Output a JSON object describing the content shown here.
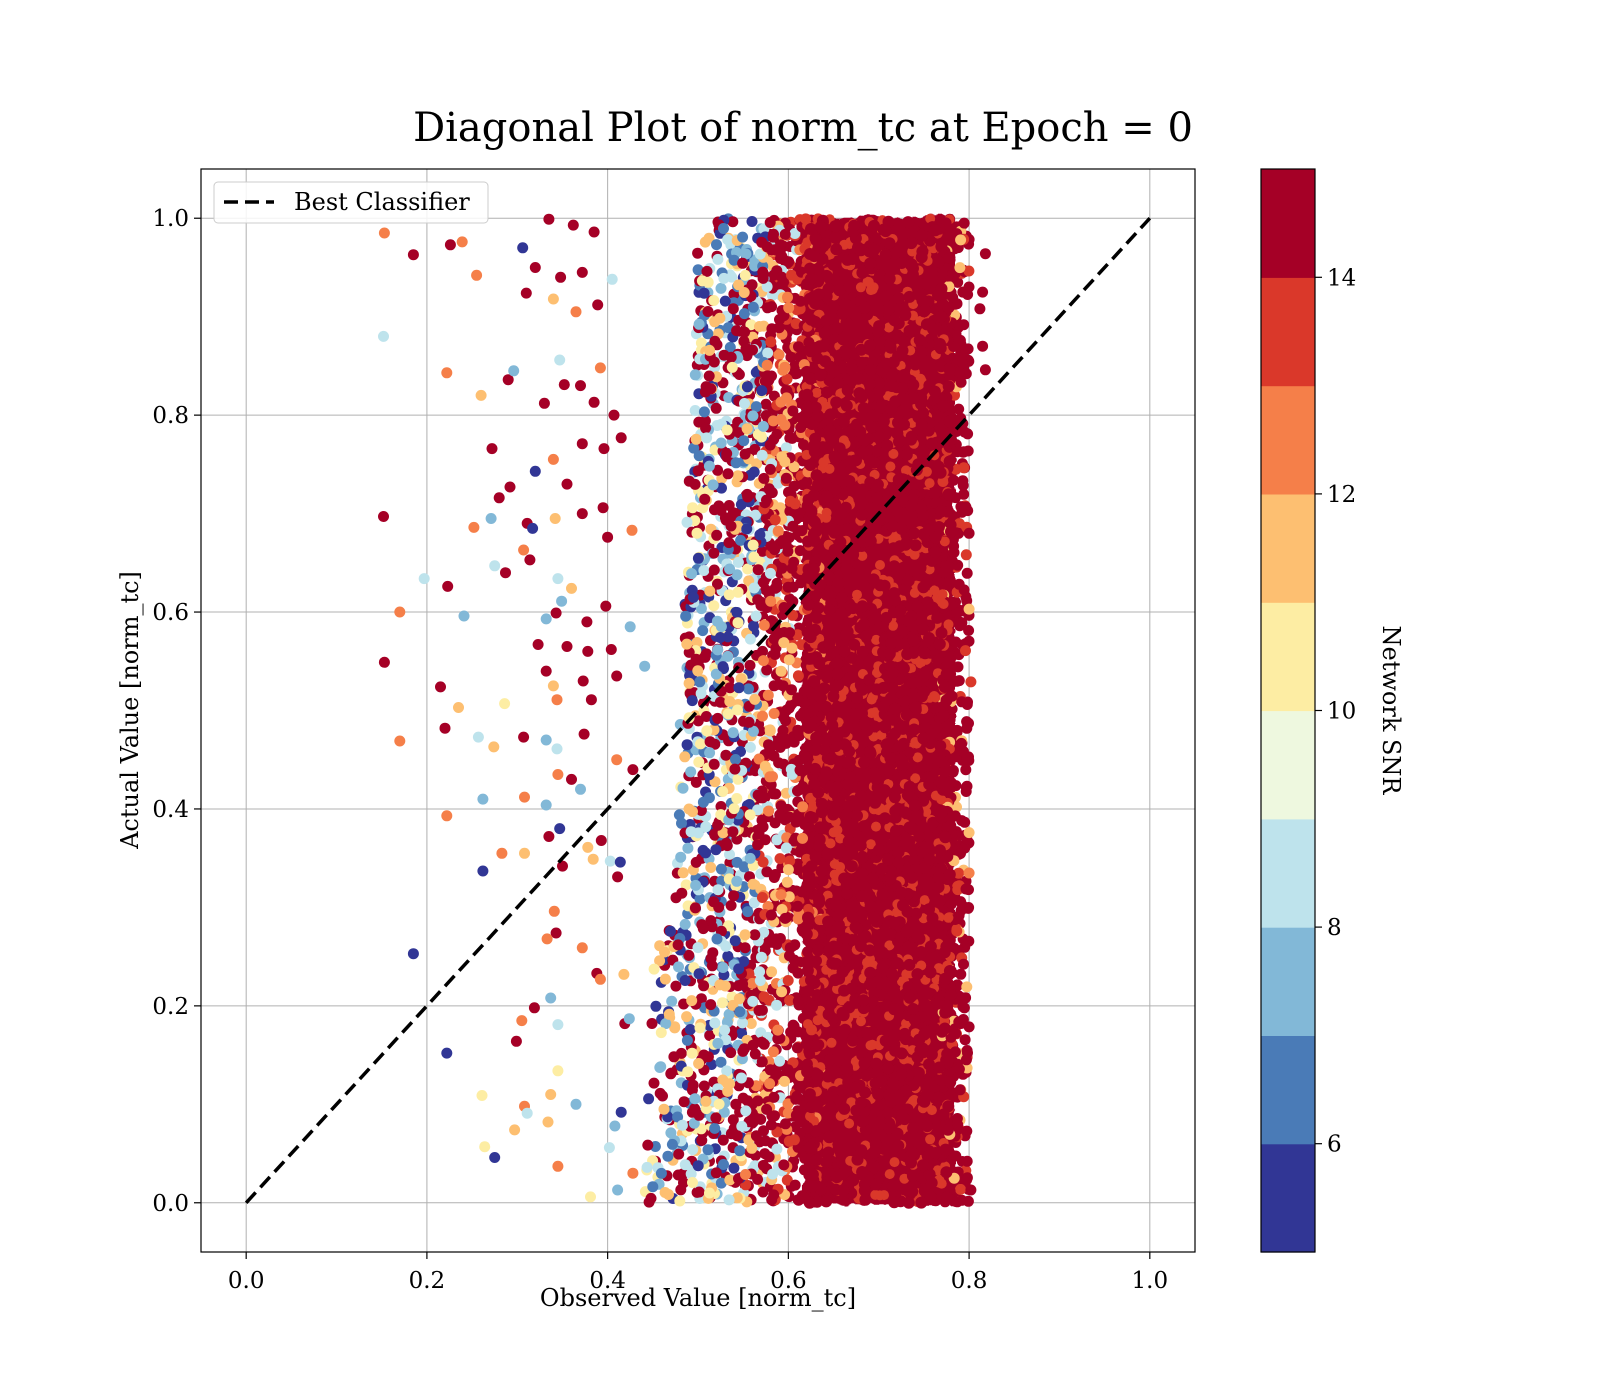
{
  "chart_data": {
    "type": "scatter",
    "title": "Diagonal Plot of norm_tc at Epoch = 0",
    "xlabel": "Observed Value [norm_tc]",
    "ylabel": "Actual Value [norm_tc]",
    "xlim": [
      -0.05,
      1.05
    ],
    "ylim": [
      -0.05,
      1.05
    ],
    "x_ticks": [
      0.0,
      0.2,
      0.4,
      0.6,
      0.8,
      1.0
    ],
    "y_ticks": [
      0.0,
      0.2,
      0.4,
      0.6,
      0.8,
      1.0
    ],
    "x_tick_labels": [
      "0.0",
      "0.2",
      "0.4",
      "0.6",
      "0.8",
      "1.0"
    ],
    "y_tick_labels": [
      "0.0",
      "0.2",
      "0.4",
      "0.6",
      "0.8",
      "1.0"
    ],
    "grid": true,
    "legend": {
      "placement": "upper-left",
      "entries": [
        "Best Classifier"
      ]
    },
    "reference_line": {
      "name": "Best Classifier",
      "x": [
        0,
        1
      ],
      "y": [
        0,
        1
      ],
      "style": "dashed",
      "color": "#000000"
    },
    "colorbar": {
      "label": "Network SNR",
      "range": [
        5,
        15
      ],
      "ticks": [
        6,
        8,
        10,
        12,
        14
      ],
      "tick_labels": [
        "6",
        "8",
        "10",
        "12",
        "14"
      ],
      "colors": [
        "#313695",
        "#4a7bb7",
        "#82b8d7",
        "#bee3ec",
        "#eef8df",
        "#fdeda3",
        "#fdbf71",
        "#f57f49",
        "#da382a",
        "#a50026"
      ]
    },
    "dense_region": {
      "x_range": [
        0.62,
        0.78
      ],
      "y_range": [
        0.0,
        1.0
      ],
      "color": "#a50026",
      "snr": 15
    },
    "points": [
      [
        0.153,
        0.985,
        12
      ],
      [
        0.185,
        0.963,
        15
      ],
      [
        0.226,
        0.973,
        15
      ],
      [
        0.239,
        0.976,
        12
      ],
      [
        0.306,
        0.97,
        5
      ],
      [
        0.335,
        0.999,
        15
      ],
      [
        0.362,
        0.993,
        15
      ],
      [
        0.385,
        0.986,
        15
      ],
      [
        0.152,
        0.88,
        8
      ],
      [
        0.32,
        0.95,
        15
      ],
      [
        0.348,
        0.94,
        15
      ],
      [
        0.372,
        0.945,
        15
      ],
      [
        0.255,
        0.942,
        12
      ],
      [
        0.31,
        0.924,
        15
      ],
      [
        0.34,
        0.918,
        11
      ],
      [
        0.405,
        0.938,
        8
      ],
      [
        0.365,
        0.905,
        12
      ],
      [
        0.389,
        0.912,
        15
      ],
      [
        0.222,
        0.843,
        12
      ],
      [
        0.26,
        0.82,
        11
      ],
      [
        0.29,
        0.836,
        15
      ],
      [
        0.296,
        0.845,
        7
      ],
      [
        0.347,
        0.856,
        8
      ],
      [
        0.352,
        0.831,
        15
      ],
      [
        0.37,
        0.83,
        15
      ],
      [
        0.392,
        0.848,
        12
      ],
      [
        0.33,
        0.812,
        15
      ],
      [
        0.385,
        0.813,
        15
      ],
      [
        0.407,
        0.8,
        15
      ],
      [
        0.415,
        0.777,
        15
      ],
      [
        0.272,
        0.766,
        15
      ],
      [
        0.34,
        0.755,
        12
      ],
      [
        0.32,
        0.743,
        5
      ],
      [
        0.355,
        0.73,
        15
      ],
      [
        0.372,
        0.771,
        15
      ],
      [
        0.396,
        0.766,
        15
      ],
      [
        0.152,
        0.697,
        15
      ],
      [
        0.252,
        0.686,
        12
      ],
      [
        0.28,
        0.716,
        15
      ],
      [
        0.292,
        0.727,
        15
      ],
      [
        0.271,
        0.695,
        7
      ],
      [
        0.311,
        0.69,
        15
      ],
      [
        0.317,
        0.685,
        5
      ],
      [
        0.342,
        0.695,
        11
      ],
      [
        0.372,
        0.7,
        15
      ],
      [
        0.395,
        0.706,
        15
      ],
      [
        0.4,
        0.676,
        15
      ],
      [
        0.427,
        0.683,
        12
      ],
      [
        0.307,
        0.663,
        12
      ],
      [
        0.275,
        0.647,
        8
      ],
      [
        0.287,
        0.64,
        15
      ],
      [
        0.314,
        0.653,
        15
      ],
      [
        0.345,
        0.634,
        8
      ],
      [
        0.36,
        0.624,
        11
      ],
      [
        0.197,
        0.634,
        8
      ],
      [
        0.223,
        0.626,
        15
      ],
      [
        0.17,
        0.6,
        12
      ],
      [
        0.241,
        0.596,
        7
      ],
      [
        0.343,
        0.599,
        15
      ],
      [
        0.332,
        0.593,
        7
      ],
      [
        0.349,
        0.611,
        7
      ],
      [
        0.377,
        0.59,
        15
      ],
      [
        0.398,
        0.606,
        15
      ],
      [
        0.425,
        0.585,
        7
      ],
      [
        0.323,
        0.567,
        15
      ],
      [
        0.355,
        0.565,
        15
      ],
      [
        0.378,
        0.56,
        15
      ],
      [
        0.404,
        0.562,
        15
      ],
      [
        0.153,
        0.549,
        15
      ],
      [
        0.215,
        0.524,
        15
      ],
      [
        0.332,
        0.54,
        15
      ],
      [
        0.34,
        0.525,
        11
      ],
      [
        0.373,
        0.53,
        15
      ],
      [
        0.382,
        0.511,
        15
      ],
      [
        0.41,
        0.535,
        15
      ],
      [
        0.441,
        0.545,
        7
      ],
      [
        0.235,
        0.503,
        11
      ],
      [
        0.286,
        0.507,
        10
      ],
      [
        0.344,
        0.511,
        12
      ],
      [
        0.22,
        0.482,
        15
      ],
      [
        0.17,
        0.469,
        12
      ],
      [
        0.257,
        0.473,
        8
      ],
      [
        0.274,
        0.463,
        11
      ],
      [
        0.307,
        0.473,
        15
      ],
      [
        0.332,
        0.47,
        7
      ],
      [
        0.344,
        0.461,
        8
      ],
      [
        0.374,
        0.476,
        15
      ],
      [
        0.41,
        0.45,
        12
      ],
      [
        0.428,
        0.44,
        15
      ],
      [
        0.345,
        0.435,
        12
      ],
      [
        0.36,
        0.43,
        15
      ],
      [
        0.262,
        0.41,
        7
      ],
      [
        0.308,
        0.412,
        12
      ],
      [
        0.332,
        0.404,
        7
      ],
      [
        0.37,
        0.42,
        7
      ],
      [
        0.222,
        0.393,
        12
      ],
      [
        0.347,
        0.38,
        5
      ],
      [
        0.335,
        0.372,
        15
      ],
      [
        0.393,
        0.368,
        15
      ],
      [
        0.378,
        0.361,
        11
      ],
      [
        0.384,
        0.349,
        11
      ],
      [
        0.283,
        0.355,
        12
      ],
      [
        0.308,
        0.355,
        11
      ],
      [
        0.403,
        0.347,
        8
      ],
      [
        0.414,
        0.346,
        5
      ],
      [
        0.262,
        0.337,
        5
      ],
      [
        0.35,
        0.342,
        15
      ],
      [
        0.411,
        0.331,
        15
      ],
      [
        0.341,
        0.296,
        12
      ],
      [
        0.343,
        0.274,
        15
      ],
      [
        0.333,
        0.268,
        12
      ],
      [
        0.372,
        0.259,
        12
      ],
      [
        0.388,
        0.233,
        15
      ],
      [
        0.418,
        0.232,
        11
      ],
      [
        0.185,
        0.253,
        5
      ],
      [
        0.337,
        0.208,
        7
      ],
      [
        0.319,
        0.198,
        15
      ],
      [
        0.305,
        0.185,
        12
      ],
      [
        0.345,
        0.181,
        8
      ],
      [
        0.392,
        0.227,
        12
      ],
      [
        0.419,
        0.182,
        15
      ],
      [
        0.424,
        0.187,
        7
      ],
      [
        0.299,
        0.164,
        15
      ],
      [
        0.222,
        0.152,
        5
      ],
      [
        0.345,
        0.134,
        10
      ],
      [
        0.261,
        0.109,
        10
      ],
      [
        0.337,
        0.11,
        11
      ],
      [
        0.365,
        0.1,
        7
      ],
      [
        0.308,
        0.098,
        12
      ],
      [
        0.311,
        0.091,
        8
      ],
      [
        0.334,
        0.082,
        11
      ],
      [
        0.297,
        0.074,
        11
      ],
      [
        0.415,
        0.092,
        5
      ],
      [
        0.408,
        0.078,
        7
      ],
      [
        0.264,
        0.057,
        10
      ],
      [
        0.402,
        0.056,
        8
      ],
      [
        0.275,
        0.046,
        5
      ],
      [
        0.345,
        0.037,
        12
      ],
      [
        0.428,
        0.03,
        12
      ],
      [
        0.411,
        0.013,
        7
      ],
      [
        0.381,
        0.006,
        10
      ],
      [
        0.818,
        0.964,
        15
      ],
      [
        0.815,
        0.925,
        15
      ],
      [
        0.815,
        0.87,
        15
      ],
      [
        0.818,
        0.846,
        15
      ],
      [
        0.812,
        0.908,
        15
      ],
      [
        0.8,
        0.68,
        15
      ],
      [
        0.8,
        0.603,
        11
      ],
      [
        0.802,
        0.529,
        13
      ],
      [
        0.8,
        0.376,
        11
      ],
      [
        0.8,
        0.335,
        12
      ],
      [
        0.802,
        0.013,
        15
      ]
    ]
  }
}
